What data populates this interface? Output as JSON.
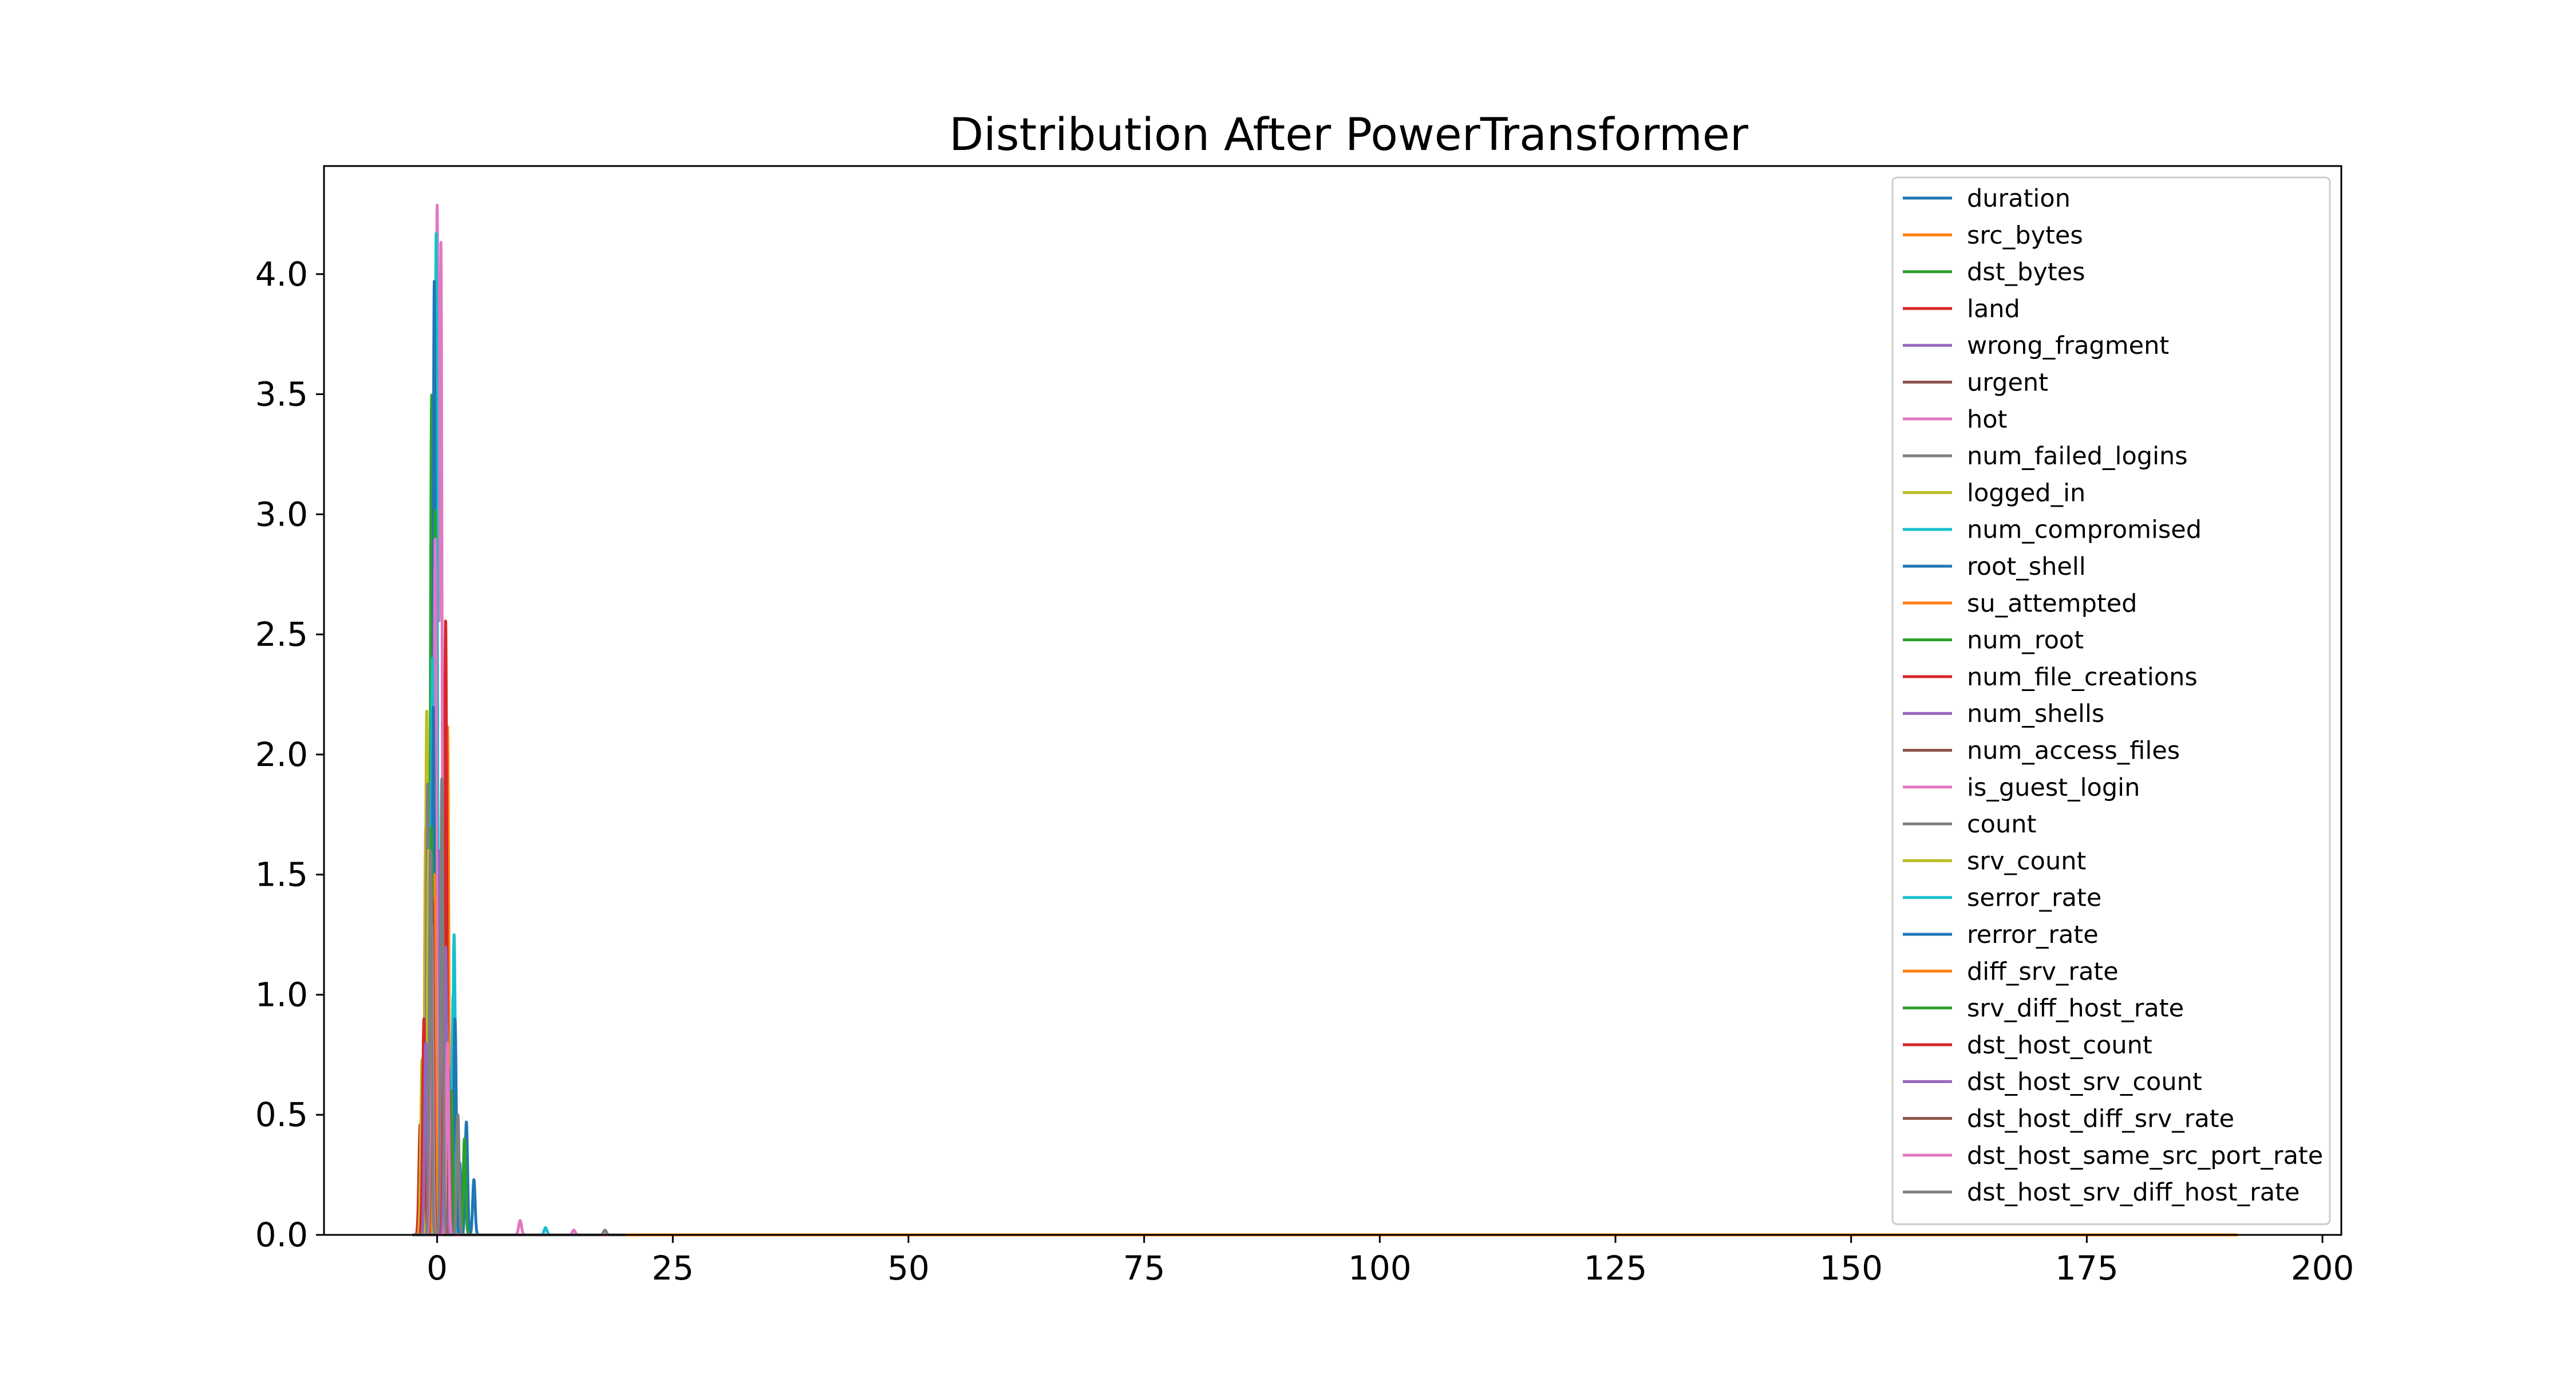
{
  "chart_data": {
    "type": "line",
    "title": "Distribution After PowerTransformer",
    "xlabel": "",
    "ylabel": "",
    "xlim": [
      -12,
      202
    ],
    "ylim": [
      0,
      4.45
    ],
    "xticks": [
      0,
      25,
      50,
      75,
      100,
      125,
      150,
      175,
      200
    ],
    "xtick_labels": [
      "0",
      "25",
      "50",
      "75",
      "100",
      "125",
      "150",
      "175",
      "200"
    ],
    "yticks": [
      0.0,
      0.5,
      1.0,
      1.5,
      2.0,
      2.5,
      3.0,
      3.5,
      4.0
    ],
    "ytick_labels": [
      "0.0",
      "0.5",
      "1.0",
      "1.5",
      "2.0",
      "2.5",
      "3.0",
      "3.5",
      "4.0"
    ],
    "grid": false,
    "legend_position": "top-right",
    "series": [
      {
        "name": "duration",
        "color": "#1f77b4",
        "peaks": [
          [
            -0.1,
            3.78
          ],
          [
            3.1,
            0.47
          ],
          [
            3.9,
            0.23
          ]
        ],
        "tail": 12
      },
      {
        "name": "src_bytes",
        "color": "#ff7f0e",
        "peaks": [
          [
            -1.2,
            1.7
          ],
          [
            1.1,
            2.12
          ],
          [
            0.3,
            0.6
          ]
        ],
        "tail": 150
      },
      {
        "name": "dst_bytes",
        "color": "#2ca02c",
        "peaks": [
          [
            -0.6,
            3.28
          ],
          [
            -0.3,
            2.6
          ],
          [
            1.4,
            0.3
          ]
        ],
        "tail": 20
      },
      {
        "name": "land",
        "color": "#d62728",
        "peaks": [
          [
            -1.8,
            0.46
          ],
          [
            0.9,
            2.56
          ],
          [
            0.1,
            0.5
          ]
        ],
        "tail": 8
      },
      {
        "name": "wrong_fragment",
        "color": "#9467bd",
        "peaks": [
          [
            0.5,
            1.8
          ],
          [
            -0.9,
            0.8
          ]
        ],
        "tail": 55
      },
      {
        "name": "urgent",
        "color": "#8c564b",
        "peaks": [
          [
            -0.5,
            1.45
          ],
          [
            0.6,
            0.76
          ]
        ],
        "tail": 18
      },
      {
        "name": "hot",
        "color": "#e377c2",
        "peaks": [
          [
            0.0,
            4.25
          ],
          [
            0.4,
            4.1
          ],
          [
            1.0,
            0.9
          ],
          [
            8.8,
            0.06
          ]
        ],
        "tail": 16
      },
      {
        "name": "num_failed_logins",
        "color": "#7f7f7f",
        "peaks": [
          [
            -0.4,
            2.35
          ],
          [
            1.3,
            0.4
          ]
        ],
        "tail": 9
      },
      {
        "name": "logged_in",
        "color": "#bcbd22",
        "peaks": [
          [
            -1.1,
            2.18
          ],
          [
            -1.6,
            0.73
          ]
        ],
        "tail": 6
      },
      {
        "name": "num_compromised",
        "color": "#17becf",
        "peaks": [
          [
            -0.1,
            4.17
          ],
          [
            1.8,
            1.25
          ],
          [
            11.5,
            0.03
          ]
        ],
        "tail": 14
      },
      {
        "name": "root_shell",
        "color": "#1f77b4",
        "peaks": [
          [
            -0.3,
            3.97
          ],
          [
            2.4,
            0.3
          ]
        ],
        "tail": 24
      },
      {
        "name": "su_attempted",
        "color": "#ff7f0e",
        "peaks": [
          [
            0.8,
            1.0
          ],
          [
            -0.7,
            0.5
          ]
        ],
        "tail": 191
      },
      {
        "name": "num_root",
        "color": "#2ca02c",
        "peaks": [
          [
            -0.2,
            3.02
          ],
          [
            2.9,
            0.4
          ]
        ],
        "tail": 17
      },
      {
        "name": "num_file_creations",
        "color": "#d62728",
        "peaks": [
          [
            0.4,
            1.2
          ],
          [
            -1.3,
            0.35
          ]
        ],
        "tail": 12
      },
      {
        "name": "num_shells",
        "color": "#9467bd",
        "peaks": [
          [
            0.2,
            1.6
          ],
          [
            -0.8,
            0.7
          ]
        ],
        "tail": 10
      },
      {
        "name": "num_access_files",
        "color": "#8c564b",
        "peaks": [
          [
            -0.3,
            1.2
          ],
          [
            1.6,
            0.35
          ]
        ],
        "tail": 15
      },
      {
        "name": "is_guest_login",
        "color": "#e377c2",
        "peaks": [
          [
            -0.2,
            2.9
          ],
          [
            0.7,
            1.1
          ],
          [
            14.5,
            0.02
          ]
        ],
        "tail": 18
      },
      {
        "name": "count",
        "color": "#7f7f7f",
        "peaks": [
          [
            -1.0,
            1.88
          ],
          [
            0.9,
            0.5
          ]
        ],
        "tail": 7
      },
      {
        "name": "srv_count",
        "color": "#bcbd22",
        "peaks": [
          [
            -0.9,
            1.6
          ],
          [
            1.2,
            0.45
          ]
        ],
        "tail": 7
      },
      {
        "name": "serror_rate",
        "color": "#17becf",
        "peaks": [
          [
            -0.5,
            2.4
          ],
          [
            1.7,
            1.0
          ]
        ],
        "tail": 6
      },
      {
        "name": "rerror_rate",
        "color": "#1f77b4",
        "peaks": [
          [
            -0.4,
            2.2
          ],
          [
            1.9,
            0.9
          ]
        ],
        "tail": 6
      },
      {
        "name": "diff_srv_rate",
        "color": "#ff7f0e",
        "peaks": [
          [
            -0.3,
            1.5
          ],
          [
            1.0,
            0.8
          ]
        ],
        "tail": 5
      },
      {
        "name": "srv_diff_host_rate",
        "color": "#2ca02c",
        "peaks": [
          [
            -0.6,
            1.7
          ],
          [
            1.5,
            0.6
          ]
        ],
        "tail": 5
      },
      {
        "name": "dst_host_count",
        "color": "#d62728",
        "peaks": [
          [
            -1.4,
            0.9
          ],
          [
            0.8,
            1.3
          ]
        ],
        "tail": 4
      },
      {
        "name": "dst_host_srv_count",
        "color": "#9467bd",
        "peaks": [
          [
            -1.2,
            0.8
          ],
          [
            0.9,
            1.2
          ]
        ],
        "tail": 4
      },
      {
        "name": "dst_host_diff_srv_rate",
        "color": "#8c564b",
        "peaks": [
          [
            -0.5,
            1.4
          ],
          [
            1.2,
            0.7
          ]
        ],
        "tail": 5
      },
      {
        "name": "dst_host_same_src_port_rate",
        "color": "#e377c2",
        "peaks": [
          [
            -0.6,
            1.3
          ],
          [
            1.1,
            0.8
          ]
        ],
        "tail": 5
      },
      {
        "name": "dst_host_srv_diff_host_rate",
        "color": "#7f7f7f",
        "peaks": [
          [
            -0.7,
            1.6
          ],
          [
            0.5,
            1.9
          ],
          [
            2.2,
            0.5
          ],
          [
            17.8,
            0.02
          ]
        ],
        "tail": 20
      }
    ]
  }
}
